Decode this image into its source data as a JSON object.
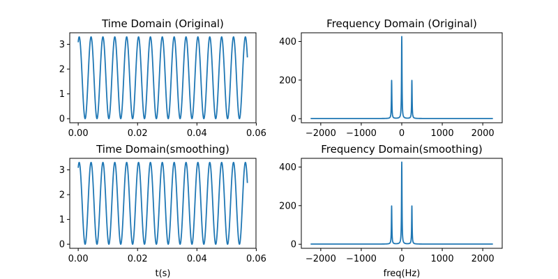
{
  "figure": {
    "background": "#ffffff",
    "line_color": "#1f77b4"
  },
  "chart_data": [
    {
      "id": "td-orig",
      "type": "line",
      "title": "Time Domain (Original)",
      "xlabel": "",
      "ylabel": "",
      "xlim": [
        -0.00285,
        0.0599
      ],
      "ylim": [
        -0.165,
        3.465
      ],
      "x_ticks": [
        0.0,
        0.02,
        0.04,
        0.06
      ],
      "x_tick_labels": [
        "0.00",
        "0.02",
        "0.04",
        "0.06"
      ],
      "y_ticks": [
        0,
        1,
        2,
        3
      ],
      "y_tick_labels": [
        "0",
        "1",
        "2",
        "3"
      ],
      "grid": false,
      "signal": {
        "kind": "cosine",
        "offset": 1.65,
        "amplitude": 1.65,
        "frequency_hz": 250,
        "phase_rad": -0.52,
        "x_start": 0.0,
        "x_end": 0.057
      }
    },
    {
      "id": "fd-orig",
      "type": "line",
      "title": "Frequency Domain (Original)",
      "xlabel": "",
      "ylabel": "",
      "xlim": [
        -2480,
        2480
      ],
      "ylim": [
        -21,
        445
      ],
      "x_ticks": [
        -2000,
        -1000,
        0,
        1000,
        2000
      ],
      "x_tick_labels": [
        "−2000",
        "−1000",
        "0",
        "1000",
        "2000"
      ],
      "y_ticks": [
        0,
        200,
        400
      ],
      "y_tick_labels": [
        "0",
        "200",
        "400"
      ],
      "grid": false,
      "spectrum": {
        "x_range": [
          -2250,
          2250
        ],
        "baseline": 1,
        "peaks": [
          {
            "freq_hz": -250,
            "height": 197
          },
          {
            "freq_hz": 0,
            "height": 424
          },
          {
            "freq_hz": 250,
            "height": 197
          }
        ]
      }
    },
    {
      "id": "td-smooth",
      "type": "line",
      "title": "Time Domain(smoothing)",
      "xlabel": "t(s)",
      "ylabel": "",
      "xlim": [
        -0.00285,
        0.0599
      ],
      "ylim": [
        -0.165,
        3.465
      ],
      "x_ticks": [
        0.0,
        0.02,
        0.04,
        0.06
      ],
      "x_tick_labels": [
        "0.00",
        "0.02",
        "0.04",
        "0.06"
      ],
      "y_ticks": [
        0,
        1,
        2,
        3
      ],
      "y_tick_labels": [
        "0",
        "1",
        "2",
        "3"
      ],
      "grid": false,
      "signal": {
        "kind": "cosine",
        "offset": 1.65,
        "amplitude": 1.65,
        "frequency_hz": 250,
        "phase_rad": -0.52,
        "x_start": 0.0,
        "x_end": 0.057
      }
    },
    {
      "id": "fd-smooth",
      "type": "line",
      "title": "Frequency Domain(smoothing)",
      "xlabel": "freq(Hz)",
      "ylabel": "",
      "xlim": [
        -2480,
        2480
      ],
      "ylim": [
        -21,
        445
      ],
      "x_ticks": [
        -2000,
        -1000,
        0,
        1000,
        2000
      ],
      "x_tick_labels": [
        "−2000",
        "−1000",
        "0",
        "1000",
        "2000"
      ],
      "y_ticks": [
        0,
        200,
        400
      ],
      "y_tick_labels": [
        "0",
        "200",
        "400"
      ],
      "grid": false,
      "spectrum": {
        "x_range": [
          -2250,
          2250
        ],
        "baseline": 1,
        "peaks": [
          {
            "freq_hz": -250,
            "height": 197
          },
          {
            "freq_hz": 0,
            "height": 424
          },
          {
            "freq_hz": 250,
            "height": 197
          }
        ]
      }
    }
  ]
}
